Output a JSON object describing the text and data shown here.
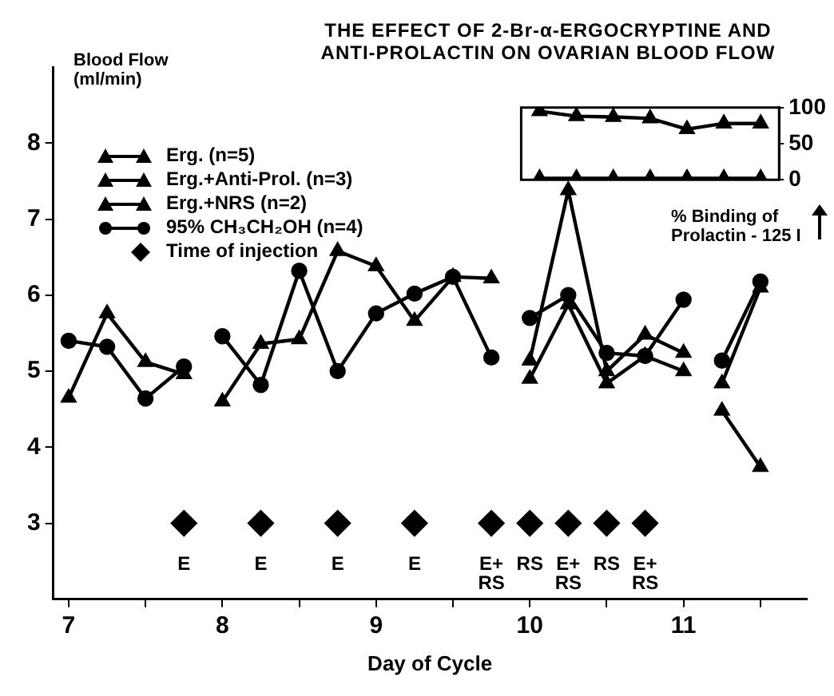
{
  "chart_data": [
    {
      "type": "line",
      "title": "THE EFFECT OF 2-Br-α-ERGOCRYPTINE AND ANTI-PROLACTIN ON OVARIAN BLOOD FLOW",
      "xlabel": "Day of Cycle",
      "ylabel": "Blood Flow (ml/min)",
      "xlim": [
        6.9,
        11.8
      ],
      "xticks": [
        7,
        {
          "value": 7.5,
          "label": null
        },
        8,
        {
          "value": 8.5,
          "label": null
        },
        9,
        {
          "value": 9.5,
          "label": null
        },
        10,
        {
          "value": 10.5,
          "label": null
        },
        11,
        {
          "value": 11.5,
          "label": null
        }
      ],
      "ylim": [
        2,
        9
      ],
      "yticks": [
        3,
        4,
        5,
        6,
        7,
        8
      ],
      "grid": false,
      "legend": "top left",
      "series": [
        {
          "name": "Erg. (n=5)",
          "color": "#000000",
          "marker": "triangle",
          "x": [
            7,
            7.25,
            7.5,
            7.75,
            7.875,
            8,
            8.25,
            8.5,
            8.75,
            9,
            9.25,
            9.5,
            9.75
          ],
          "values": [
            4.65,
            5.76,
            5.12,
            4.96,
            null,
            4.6,
            5.36,
            5.42,
            6.58,
            6.38,
            5.66,
            6.24,
            6.22
          ]
        },
        {
          "name": "Erg.+Anti-Prol. (n=3)",
          "color": "#000000",
          "marker": "triangle",
          "x": [
            10,
            10.25,
            10.5,
            10.75,
            11,
            11.125,
            11.25,
            11.5
          ],
          "values": [
            5.14,
            7.38,
            5.0,
            5.48,
            5.24,
            null,
            4.84,
            6.1
          ]
        },
        {
          "name": "Erg.+NRS (n=2)",
          "color": "#000000",
          "marker": "triangle",
          "x": [
            10,
            10.25,
            10.5,
            10.75,
            11,
            11.125,
            11.25,
            11.5
          ],
          "values": [
            4.9,
            5.88,
            4.84,
            5.2,
            5.0,
            null,
            4.48,
            3.74
          ]
        },
        {
          "name": "95% CH₃CH₂OH (n=4)",
          "color": "#000000",
          "marker": "circle",
          "x": [
            7,
            7.25,
            7.5,
            7.75,
            7.875,
            8,
            8.25,
            8.5,
            8.75,
            9,
            9.25,
            9.5,
            9.75,
            9.875,
            10,
            10.25,
            10.5,
            10.75,
            11,
            11.125,
            11.25,
            11.5
          ],
          "values": [
            5.4,
            5.32,
            4.64,
            5.06,
            null,
            5.46,
            4.82,
            6.32,
            5.0,
            5.76,
            6.02,
            6.24,
            5.18,
            null,
            5.7,
            6.0,
            5.24,
            5.2,
            5.94,
            null,
            5.14,
            6.18
          ]
        },
        {
          "name": "Time of injection",
          "type": "scatter",
          "color": "#000000",
          "marker": "diamond",
          "x": [
            7.75,
            8.25,
            8.75,
            9.25,
            9.75,
            10,
            10.25,
            10.5,
            10.75
          ],
          "values": [
            3,
            3,
            3,
            3,
            3,
            3,
            3,
            3,
            3
          ],
          "value_labels": [
            "E",
            "E",
            "E",
            "E",
            "E+ RS",
            "RS",
            "E+ RS",
            "RS",
            "E+ RS"
          ]
        }
      ]
    },
    {
      "type": "line",
      "annotations": [
        "% Binding of Prolactin - 125 I"
      ],
      "categories": [
        null,
        null,
        null,
        null,
        null,
        null,
        null
      ],
      "ylim": [
        0,
        100
      ],
      "yticks": [
        0,
        50,
        100
      ],
      "grid": false,
      "tick_labels": "y",
      "series": [
        {
          "color": "#000000",
          "marker": "triangle",
          "values": [
            95,
            88,
            87,
            85,
            70,
            78,
            78
          ]
        },
        {
          "color": "#000000",
          "marker": "triangle",
          "values": [
            2,
            2,
            2,
            2,
            2,
            2,
            2
          ]
        }
      ]
    }
  ]
}
